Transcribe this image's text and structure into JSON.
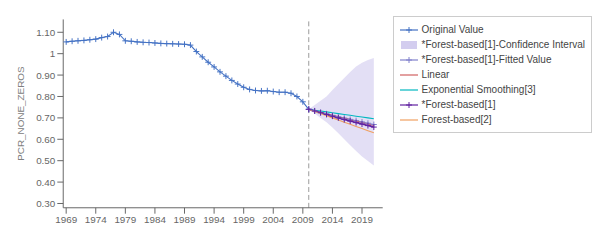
{
  "chart_data": {
    "type": "line",
    "ylabel": "PCR_NONE_ZEROS",
    "grid": false,
    "xlim": [
      1968.5,
      2022.5
    ],
    "xticks": [
      1969,
      1974,
      1979,
      1984,
      1989,
      1994,
      1999,
      2004,
      2009,
      2014,
      2019
    ],
    "ylim": [
      0.28,
      1.16
    ],
    "yticks": [
      {
        "value": 0.3,
        "label": "0.30"
      },
      {
        "value": 0.4,
        "label": "0.40"
      },
      {
        "value": 0.5,
        "label": "0.50"
      },
      {
        "value": 0.6,
        "label": "0.60"
      },
      {
        "value": 0.7,
        "label": "0.70"
      },
      {
        "value": 0.8,
        "label": "0.80"
      },
      {
        "value": 0.9,
        "label": "0.90"
      },
      1,
      {
        "value": 1.1,
        "label": "1.10"
      }
    ],
    "vline": {
      "x": 2010,
      "color": "#999999",
      "line_style": "dashed"
    },
    "series": [
      {
        "name": "Original Value",
        "color": "#4472c4",
        "marker": "plus",
        "x": [
          1969,
          1970,
          1971,
          1972,
          1973,
          1974,
          1975,
          1976,
          1977,
          1978,
          1979,
          1980,
          1981,
          1982,
          1983,
          1984,
          1985,
          1986,
          1987,
          1988,
          1989,
          1990,
          1991,
          1992,
          1993,
          1994,
          1995,
          1996,
          1997,
          1998,
          1999,
          2000,
          2001,
          2002,
          2003,
          2004,
          2005,
          2006,
          2007,
          2008,
          2009,
          2010
        ],
        "values": [
          1.055,
          1.058,
          1.06,
          1.062,
          1.065,
          1.068,
          1.075,
          1.08,
          1.1,
          1.09,
          1.06,
          1.058,
          1.055,
          1.053,
          1.052,
          1.05,
          1.048,
          1.047,
          1.046,
          1.045,
          1.044,
          1.04,
          1.01,
          0.985,
          0.96,
          0.938,
          0.915,
          0.895,
          0.875,
          0.858,
          0.843,
          0.833,
          0.828,
          0.826,
          0.827,
          0.823,
          0.82,
          0.82,
          0.815,
          0.8,
          0.775,
          0.74
        ]
      },
      {
        "name": "*Forest-based[1]-Confidence Interval",
        "type": "area",
        "color": "#c0b8e8",
        "x": [
          2010,
          2011,
          2012,
          2013,
          2014,
          2015,
          2016,
          2017,
          2018,
          2019,
          2020,
          2021
        ],
        "lower": [
          0.74,
          0.72,
          0.7,
          0.68,
          0.655,
          0.628,
          0.6,
          0.572,
          0.545,
          0.52,
          0.498,
          0.478
        ],
        "upper": [
          0.74,
          0.76,
          0.78,
          0.8,
          0.83,
          0.858,
          0.886,
          0.914,
          0.94,
          0.958,
          0.97,
          0.98
        ]
      },
      {
        "name": "*Forest-based[1]-Fitted Value",
        "color": "#8080cc",
        "marker": "plus",
        "x": [
          2010,
          2011,
          2012,
          2013,
          2014,
          2015,
          2016,
          2017,
          2018,
          2019,
          2020,
          2021
        ],
        "values": [
          0.74,
          0.733,
          0.726,
          0.719,
          0.712,
          0.705,
          0.699,
          0.693,
          0.687,
          0.681,
          0.675,
          0.669
        ]
      },
      {
        "name": "Linear",
        "color": "#d06060",
        "x": [
          2010,
          2011,
          2012,
          2013,
          2014,
          2015,
          2016,
          2017,
          2018,
          2019,
          2020,
          2021
        ],
        "values": [
          0.74,
          0.733,
          0.726,
          0.719,
          0.712,
          0.705,
          0.698,
          0.691,
          0.685,
          0.678,
          0.671,
          0.664
        ]
      },
      {
        "name": "Exponential Smoothing[3]",
        "color": "#00b8c0",
        "x": [
          2010,
          2011,
          2012,
          2013,
          2014,
          2015,
          2016,
          2017,
          2018,
          2019,
          2020,
          2021
        ],
        "values": [
          0.74,
          0.736,
          0.732,
          0.728,
          0.724,
          0.72,
          0.716,
          0.712,
          0.708,
          0.704,
          0.7,
          0.696
        ]
      },
      {
        "name": "*Forest-based[1]",
        "color": "#6020a0",
        "marker": "plus",
        "x": [
          2010,
          2011,
          2012,
          2013,
          2014,
          2015,
          2016,
          2017,
          2018,
          2019,
          2020,
          2021
        ],
        "values": [
          0.74,
          0.732,
          0.724,
          0.716,
          0.708,
          0.7,
          0.692,
          0.685,
          0.678,
          0.671,
          0.664,
          0.657
        ]
      },
      {
        "name": "Forest-based[2]",
        "color": "#f0a060",
        "x": [
          2010,
          2011,
          2012,
          2013,
          2014,
          2015,
          2016,
          2017,
          2018,
          2019,
          2020,
          2021
        ],
        "values": [
          0.74,
          0.73,
          0.72,
          0.71,
          0.7,
          0.69,
          0.68,
          0.67,
          0.66,
          0.65,
          0.64,
          0.63
        ]
      }
    ]
  }
}
